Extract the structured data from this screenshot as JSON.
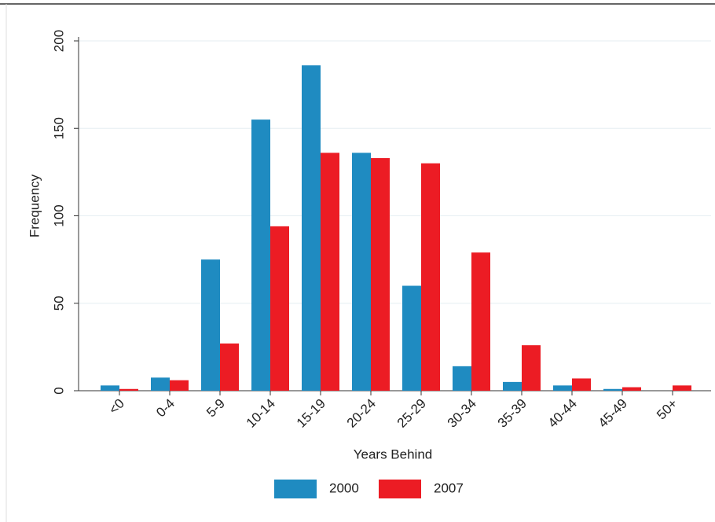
{
  "chart_data": {
    "type": "bar",
    "categories": [
      "<0",
      "0-4",
      "5-9",
      "10-14",
      "15-19",
      "20-24",
      "25-29",
      "30-34",
      "35-39",
      "40-44",
      "45-49",
      "50+"
    ],
    "series": [
      {
        "name": "2000",
        "color": "#1f8bc1",
        "values": [
          3,
          7.5,
          75,
          155,
          186,
          136,
          60,
          14,
          5,
          3,
          1,
          0
        ]
      },
      {
        "name": "2007",
        "color": "#ec1c24",
        "values": [
          1,
          6,
          27,
          94,
          136,
          133,
          130,
          79,
          26,
          7,
          2,
          3
        ]
      }
    ],
    "ylim": [
      0,
      200
    ],
    "yticks": [
      0,
      50,
      100,
      150,
      200
    ],
    "grid": true,
    "xlabel": "Years Behind",
    "ylabel": "Frequency",
    "legend": "bottom"
  }
}
